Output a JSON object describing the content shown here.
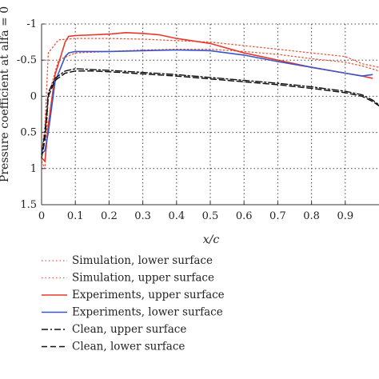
{
  "chart_data": {
    "type": "line",
    "xlabel": "x/c",
    "ylabel": "Pressure coefficient at alfa = 0",
    "xlim": [
      0,
      1
    ],
    "ylim": [
      1.5,
      -1
    ],
    "y_axis_inverted": true,
    "grid": "on (dotted)",
    "legend_position": "below plot",
    "x_ticks": [
      "0",
      "0.1",
      "0.2",
      "0.3",
      "0.4",
      "0.5",
      "0.6",
      "0.7",
      "0.8",
      "0.9"
    ],
    "y_ticks": [
      "-1",
      "-0.5",
      "0",
      "0.5",
      "1",
      "1.5"
    ],
    "series": [
      {
        "name": "Simulation, lower surface",
        "color": "#e8573f",
        "style": "dotted",
        "x": [
          0.0,
          0.01,
          0.02,
          0.05,
          0.1,
          0.2,
          0.3,
          0.4,
          0.5,
          0.6,
          0.7,
          0.8,
          0.9,
          0.95,
          1.0
        ],
        "y": [
          0.9,
          1.0,
          0.0,
          -0.5,
          -0.6,
          -0.62,
          -0.64,
          -0.65,
          -0.65,
          -0.62,
          -0.58,
          -0.52,
          -0.47,
          -0.42,
          -0.35
        ]
      },
      {
        "name": "Simulation, upper surface",
        "color": "#e8573f",
        "style": "dotted",
        "x": [
          0.0,
          0.01,
          0.02,
          0.05,
          0.1,
          0.2,
          0.3,
          0.4,
          0.5,
          0.6,
          0.7,
          0.8,
          0.9,
          0.95,
          1.0
        ],
        "y": [
          0.8,
          0.4,
          -0.6,
          -0.78,
          -0.8,
          -0.8,
          -0.79,
          -0.77,
          -0.75,
          -0.7,
          -0.65,
          -0.6,
          -0.55,
          -0.45,
          -0.4
        ]
      },
      {
        "name": "Experiments, upper surface",
        "color": "#e8382a",
        "style": "solid",
        "x": [
          0.0,
          0.01,
          0.02,
          0.04,
          0.07,
          0.08,
          0.1,
          0.2,
          0.25,
          0.3,
          0.35,
          0.4,
          0.5,
          0.6,
          0.7,
          0.8,
          0.9,
          0.95,
          0.98
        ],
        "y": [
          0.85,
          0.9,
          0.4,
          -0.3,
          -0.75,
          -0.83,
          -0.84,
          -0.86,
          -0.88,
          -0.87,
          -0.85,
          -0.8,
          -0.73,
          -0.6,
          -0.5,
          -0.4,
          -0.32,
          -0.28,
          -0.25
        ]
      },
      {
        "name": "Experiments, lower surface",
        "color": "#3a55c8",
        "style": "solid",
        "x": [
          0.0,
          0.01,
          0.02,
          0.04,
          0.07,
          0.08,
          0.1,
          0.2,
          0.3,
          0.4,
          0.5,
          0.6,
          0.7,
          0.8,
          0.9,
          0.95,
          0.98
        ],
        "y": [
          0.8,
          0.75,
          0.5,
          -0.2,
          -0.55,
          -0.6,
          -0.62,
          -0.62,
          -0.63,
          -0.64,
          -0.63,
          -0.57,
          -0.48,
          -0.4,
          -0.32,
          -0.28,
          -0.3
        ]
      },
      {
        "name": "Clean, upper surface",
        "color": "#111111",
        "style": "dashdot",
        "x": [
          0.0,
          0.01,
          0.02,
          0.04,
          0.07,
          0.1,
          0.15,
          0.2,
          0.3,
          0.4,
          0.5,
          0.6,
          0.7,
          0.8,
          0.9,
          0.95,
          0.98,
          1.0
        ],
        "y": [
          0.8,
          0.5,
          -0.05,
          -0.25,
          -0.35,
          -0.38,
          -0.37,
          -0.36,
          -0.33,
          -0.3,
          -0.26,
          -0.22,
          -0.18,
          -0.13,
          -0.07,
          -0.02,
          0.05,
          0.12
        ]
      },
      {
        "name": "Clean, lower surface",
        "color": "#111111",
        "style": "dashed",
        "x": [
          0.0,
          0.01,
          0.02,
          0.04,
          0.07,
          0.1,
          0.15,
          0.2,
          0.3,
          0.4,
          0.5,
          0.6,
          0.7,
          0.8,
          0.9,
          0.95,
          0.98,
          1.0
        ],
        "y": [
          0.85,
          0.6,
          0.0,
          -0.22,
          -0.32,
          -0.35,
          -0.35,
          -0.34,
          -0.31,
          -0.28,
          -0.24,
          -0.2,
          -0.16,
          -0.11,
          -0.05,
          0.0,
          0.07,
          0.13
        ]
      }
    ]
  }
}
